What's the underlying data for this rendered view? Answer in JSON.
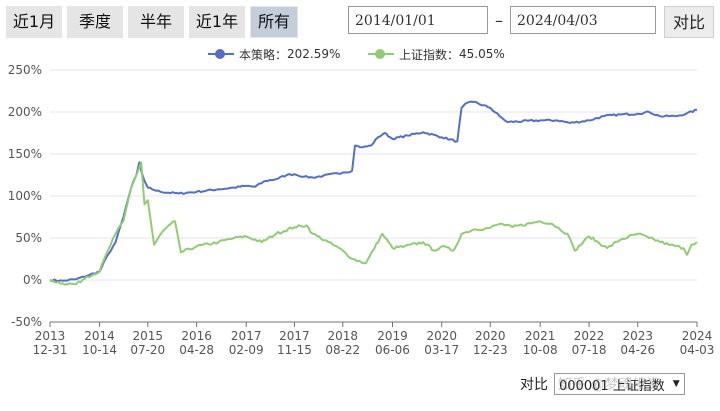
{
  "toolbar": {
    "range_buttons": [
      "近1月",
      "季度",
      "半年",
      "近1年",
      "所有"
    ],
    "active_range": "所有",
    "start_date": "2014/01/01",
    "date_separator": "–",
    "end_date": "2024/04/03",
    "compare_label": "对比"
  },
  "bottom": {
    "label": "对比",
    "selected": "000001 上证指数",
    "watermark": "知乎 @梦魂投资"
  },
  "chart_data": {
    "type": "line",
    "title": "",
    "xlabel": "",
    "ylabel": "",
    "ylim": [
      -50,
      250
    ],
    "yticks": [
      -50,
      0,
      50,
      100,
      150,
      200,
      250
    ],
    "ytick_labels": [
      "-50%",
      "0%",
      "50%",
      "100%",
      "150%",
      "200%",
      "250%"
    ],
    "xticks": [
      {
        "date": "2013-12-31",
        "label": [
          "2013",
          "12-31"
        ]
      },
      {
        "date": "2014-10-14",
        "label": [
          "2014",
          "10-14"
        ]
      },
      {
        "date": "2015-07-20",
        "label": [
          "2015",
          "07-20"
        ]
      },
      {
        "date": "2016-04-28",
        "label": [
          "2016",
          "04-28"
        ]
      },
      {
        "date": "2017-02-09",
        "label": [
          "2017",
          "02-09"
        ]
      },
      {
        "date": "2017-11-15",
        "label": [
          "2017",
          "11-15"
        ]
      },
      {
        "date": "2018-08-22",
        "label": [
          "2018",
          "08-22"
        ]
      },
      {
        "date": "2019-06-06",
        "label": [
          "2019",
          "06-06"
        ]
      },
      {
        "date": "2020-03-17",
        "label": [
          "2020",
          "03-17"
        ]
      },
      {
        "date": "2020-12-23",
        "label": [
          "2020",
          "12-23"
        ]
      },
      {
        "date": "2021-10-08",
        "label": [
          "2021",
          "10-08"
        ]
      },
      {
        "date": "2022-07-18",
        "label": [
          "2022",
          "07-18"
        ]
      },
      {
        "date": "2023-04-26",
        "label": [
          "2023",
          "04-26"
        ]
      },
      {
        "date": "2024-04-03",
        "label": [
          "2024",
          "04-03"
        ]
      }
    ],
    "grid": "horizontal",
    "legend_position": "top-center",
    "series": [
      {
        "name": "本策略",
        "legend_value": "202.59%",
        "color": "#5470c6",
        "points": [
          [
            "2013-12-31",
            0
          ],
          [
            "2014-03-15",
            -1
          ],
          [
            "2014-06-01",
            1
          ],
          [
            "2014-08-01",
            5
          ],
          [
            "2014-10-14",
            10
          ],
          [
            "2014-12-01",
            30
          ],
          [
            "2015-01-15",
            45
          ],
          [
            "2015-03-01",
            75
          ],
          [
            "2015-04-15",
            110
          ],
          [
            "2015-05-15",
            125
          ],
          [
            "2015-06-01",
            140
          ],
          [
            "2015-06-15",
            128
          ],
          [
            "2015-07-01",
            118
          ],
          [
            "2015-07-20",
            110
          ],
          [
            "2015-08-15",
            108
          ],
          [
            "2015-10-01",
            105
          ],
          [
            "2016-01-15",
            103
          ],
          [
            "2016-04-28",
            105
          ],
          [
            "2016-09-01",
            108
          ],
          [
            "2016-12-01",
            110
          ],
          [
            "2017-02-09",
            112
          ],
          [
            "2017-04-01",
            111
          ],
          [
            "2017-06-01",
            118
          ],
          [
            "2017-08-01",
            120
          ],
          [
            "2017-10-01",
            125
          ],
          [
            "2017-11-15",
            126
          ],
          [
            "2018-01-10",
            123
          ],
          [
            "2018-03-01",
            122
          ],
          [
            "2018-05-01",
            124
          ],
          [
            "2018-08-22",
            128
          ],
          [
            "2018-10-15",
            130
          ],
          [
            "2018-11-01",
            160
          ],
          [
            "2018-12-15",
            158
          ],
          [
            "2019-02-01",
            160
          ],
          [
            "2019-03-15",
            170
          ],
          [
            "2019-04-20",
            175
          ],
          [
            "2019-06-06",
            168
          ],
          [
            "2019-09-01",
            172
          ],
          [
            "2019-12-01",
            176
          ],
          [
            "2020-03-17",
            170
          ],
          [
            "2020-06-15",
            165
          ],
          [
            "2020-07-10",
            205
          ],
          [
            "2020-08-01",
            210
          ],
          [
            "2020-09-15",
            212
          ],
          [
            "2020-12-23",
            205
          ],
          [
            "2021-02-15",
            195
          ],
          [
            "2021-04-01",
            188
          ],
          [
            "2021-10-08",
            190
          ],
          [
            "2022-01-15",
            190
          ],
          [
            "2022-04-01",
            187
          ],
          [
            "2022-07-18",
            190
          ],
          [
            "2022-10-10",
            195
          ],
          [
            "2023-01-15",
            197
          ],
          [
            "2023-04-26",
            198
          ],
          [
            "2023-07-01",
            200
          ],
          [
            "2023-09-01",
            195
          ],
          [
            "2023-12-01",
            195
          ],
          [
            "2024-02-01",
            198
          ],
          [
            "2024-04-03",
            202.59
          ]
        ]
      },
      {
        "name": "上证指数",
        "legend_value": "45.05%",
        "color": "#91cc75",
        "points": [
          [
            "2013-12-31",
            0
          ],
          [
            "2014-03-15",
            -4
          ],
          [
            "2014-06-01",
            -5
          ],
          [
            "2014-08-01",
            4
          ],
          [
            "2014-10-14",
            10
          ],
          [
            "2014-12-01",
            35
          ],
          [
            "2015-01-15",
            55
          ],
          [
            "2015-03-01",
            70
          ],
          [
            "2015-04-15",
            110
          ],
          [
            "2015-05-15",
            125
          ],
          [
            "2015-06-12",
            140
          ],
          [
            "2015-07-01",
            90
          ],
          [
            "2015-07-20",
            95
          ],
          [
            "2015-08-26",
            42
          ],
          [
            "2015-10-15",
            58
          ],
          [
            "2015-12-25",
            70
          ],
          [
            "2016-01-28",
            33
          ],
          [
            "2016-04-28",
            40
          ],
          [
            "2016-09-01",
            45
          ],
          [
            "2016-12-01",
            50
          ],
          [
            "2017-02-09",
            52
          ],
          [
            "2017-05-10",
            45
          ],
          [
            "2017-08-01",
            55
          ],
          [
            "2017-11-15",
            63
          ],
          [
            "2018-01-25",
            65
          ],
          [
            "2018-03-01",
            55
          ],
          [
            "2018-06-01",
            45
          ],
          [
            "2018-08-22",
            35
          ],
          [
            "2018-10-18",
            25
          ],
          [
            "2019-01-03",
            20
          ],
          [
            "2019-04-08",
            55
          ],
          [
            "2019-06-06",
            38
          ],
          [
            "2019-08-15",
            40
          ],
          [
            "2019-12-01",
            45
          ],
          [
            "2020-02-03",
            35
          ],
          [
            "2020-03-17",
            40
          ],
          [
            "2020-05-25",
            35
          ],
          [
            "2020-07-10",
            55
          ],
          [
            "2020-09-15",
            60
          ],
          [
            "2020-12-23",
            62
          ],
          [
            "2021-02-18",
            67
          ],
          [
            "2021-05-01",
            63
          ],
          [
            "2021-10-08",
            70
          ],
          [
            "2021-12-15",
            67
          ],
          [
            "2022-03-15",
            55
          ],
          [
            "2022-04-26",
            35
          ],
          [
            "2022-07-18",
            52
          ],
          [
            "2022-10-31",
            38
          ],
          [
            "2023-01-15",
            48
          ],
          [
            "2023-04-26",
            55
          ],
          [
            "2023-07-01",
            50
          ],
          [
            "2023-10-23",
            42
          ],
          [
            "2024-01-15",
            38
          ],
          [
            "2024-02-05",
            30
          ],
          [
            "2024-03-01",
            42
          ],
          [
            "2024-04-03",
            45.05
          ]
        ]
      }
    ]
  }
}
